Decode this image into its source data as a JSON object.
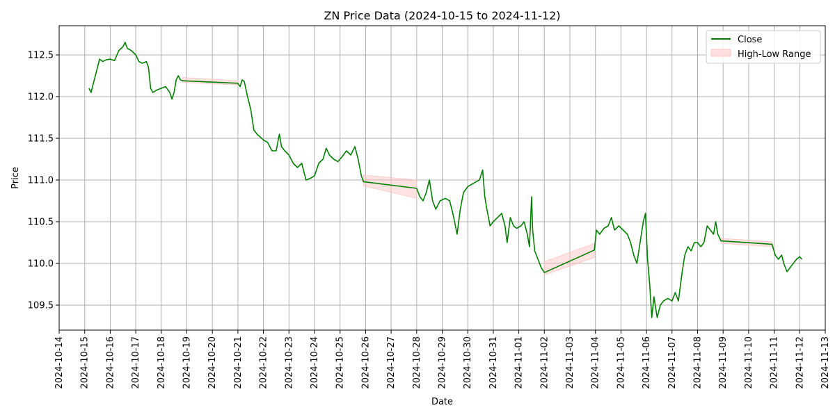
{
  "chart_data": {
    "type": "line",
    "title": "ZN Price Data (2024-10-15 to 2024-11-12)",
    "xlabel": "Date",
    "ylabel": "Price",
    "xlim": [
      "2024-10-14",
      "2024-11-13"
    ],
    "ylim": [
      109.2,
      112.85
    ],
    "x_ticks": [
      "2024-10-14",
      "2024-10-15",
      "2024-10-16",
      "2024-10-17",
      "2024-10-18",
      "2024-10-19",
      "2024-10-20",
      "2024-10-21",
      "2024-10-22",
      "2024-10-23",
      "2024-10-24",
      "2024-10-25",
      "2024-10-26",
      "2024-10-27",
      "2024-10-28",
      "2024-10-29",
      "2024-10-30",
      "2024-10-31",
      "2024-11-01",
      "2024-11-02",
      "2024-11-03",
      "2024-11-04",
      "2024-11-05",
      "2024-11-06",
      "2024-11-07",
      "2024-11-08",
      "2024-11-09",
      "2024-11-10",
      "2024-11-11",
      "2024-11-12",
      "2024-11-13"
    ],
    "y_ticks": [
      109.5,
      110.0,
      110.5,
      111.0,
      111.5,
      112.0,
      112.5
    ],
    "y_tick_labels": [
      "109.5",
      "110.0",
      "110.5",
      "111.0",
      "111.5",
      "112.0",
      "112.5"
    ],
    "grid": true,
    "legend_position": "top-right",
    "colors": {
      "close": "#008000",
      "range_fill": "#ffc0c0",
      "grid": "#b0b0b0"
    },
    "series": [
      {
        "name": "Close",
        "kind": "line",
        "points": [
          [
            "2024-10-15T04:00",
            112.1
          ],
          [
            "2024-10-15T06:00",
            112.05
          ],
          [
            "2024-10-15T08:00",
            112.15
          ],
          [
            "2024-10-15T10:00",
            112.25
          ],
          [
            "2024-10-15T12:00",
            112.35
          ],
          [
            "2024-10-15T14:00",
            112.45
          ],
          [
            "2024-10-15T17:00",
            112.42
          ],
          [
            "2024-10-15T20:00",
            112.44
          ],
          [
            "2024-10-16T00:00",
            112.45
          ],
          [
            "2024-10-16T04:00",
            112.43
          ],
          [
            "2024-10-16T08:00",
            112.55
          ],
          [
            "2024-10-16T12:00",
            112.6
          ],
          [
            "2024-10-16T14:00",
            112.65
          ],
          [
            "2024-10-16T16:00",
            112.58
          ],
          [
            "2024-10-16T20:00",
            112.55
          ],
          [
            "2024-10-17T00:00",
            112.5
          ],
          [
            "2024-10-17T03:00",
            112.42
          ],
          [
            "2024-10-17T06:00",
            112.4
          ],
          [
            "2024-10-17T10:00",
            112.42
          ],
          [
            "2024-10-17T12:00",
            112.35
          ],
          [
            "2024-10-17T14:00",
            112.1
          ],
          [
            "2024-10-17T16:00",
            112.05
          ],
          [
            "2024-10-17T20:00",
            112.08
          ],
          [
            "2024-10-18T00:00",
            112.1
          ],
          [
            "2024-10-18T04:00",
            112.12
          ],
          [
            "2024-10-18T08:00",
            112.05
          ],
          [
            "2024-10-18T10:00",
            111.97
          ],
          [
            "2024-10-18T12:00",
            112.05
          ],
          [
            "2024-10-18T14:00",
            112.2
          ],
          [
            "2024-10-18T16:00",
            112.25
          ],
          [
            "2024-10-18T18:00",
            112.2
          ],
          [
            "2024-10-18T20:00",
            112.19
          ],
          [
            "2024-10-21T00:00",
            112.16
          ],
          [
            "2024-10-21T02:00",
            112.12
          ],
          [
            "2024-10-21T04:00",
            112.2
          ],
          [
            "2024-10-21T06:00",
            112.18
          ],
          [
            "2024-10-21T09:00",
            112.0
          ],
          [
            "2024-10-21T12:00",
            111.85
          ],
          [
            "2024-10-21T15:00",
            111.6
          ],
          [
            "2024-10-21T18:00",
            111.55
          ],
          [
            "2024-10-22T00:00",
            111.48
          ],
          [
            "2024-10-22T04:00",
            111.45
          ],
          [
            "2024-10-22T08:00",
            111.35
          ],
          [
            "2024-10-22T12:00",
            111.35
          ],
          [
            "2024-10-22T15:00",
            111.55
          ],
          [
            "2024-10-22T17:00",
            111.4
          ],
          [
            "2024-10-22T20:00",
            111.35
          ],
          [
            "2024-10-23T00:00",
            111.3
          ],
          [
            "2024-10-23T04:00",
            111.2
          ],
          [
            "2024-10-23T08:00",
            111.15
          ],
          [
            "2024-10-23T12:00",
            111.2
          ],
          [
            "2024-10-23T16:00",
            111.0
          ],
          [
            "2024-10-23T20:00",
            111.02
          ],
          [
            "2024-10-24T00:00",
            111.05
          ],
          [
            "2024-10-24T04:00",
            111.2
          ],
          [
            "2024-10-24T08:00",
            111.25
          ],
          [
            "2024-10-24T11:00",
            111.38
          ],
          [
            "2024-10-24T14:00",
            111.3
          ],
          [
            "2024-10-24T18:00",
            111.25
          ],
          [
            "2024-10-24T22:00",
            111.22
          ],
          [
            "2024-10-25T02:00",
            111.28
          ],
          [
            "2024-10-25T06:00",
            111.35
          ],
          [
            "2024-10-25T10:00",
            111.3
          ],
          [
            "2024-10-25T14:00",
            111.4
          ],
          [
            "2024-10-25T17:00",
            111.25
          ],
          [
            "2024-10-25T20:00",
            111.05
          ],
          [
            "2024-10-25T22:00",
            110.98
          ],
          [
            "2024-10-28T00:00",
            110.9
          ],
          [
            "2024-10-28T03:00",
            110.8
          ],
          [
            "2024-10-28T06:00",
            110.75
          ],
          [
            "2024-10-28T09:00",
            110.85
          ],
          [
            "2024-10-28T12:00",
            111.0
          ],
          [
            "2024-10-28T15:00",
            110.75
          ],
          [
            "2024-10-28T18:00",
            110.65
          ],
          [
            "2024-10-28T22:00",
            110.75
          ],
          [
            "2024-10-29T03:00",
            110.78
          ],
          [
            "2024-10-29T07:00",
            110.75
          ],
          [
            "2024-10-29T10:00",
            110.6
          ],
          [
            "2024-10-29T14:00",
            110.35
          ],
          [
            "2024-10-29T17:00",
            110.65
          ],
          [
            "2024-10-29T20:00",
            110.85
          ],
          [
            "2024-10-30T00:00",
            110.92
          ],
          [
            "2024-10-30T04:00",
            110.95
          ],
          [
            "2024-10-30T08:00",
            110.98
          ],
          [
            "2024-10-30T11:00",
            111.0
          ],
          [
            "2024-10-30T14:00",
            111.12
          ],
          [
            "2024-10-30T16:00",
            110.8
          ],
          [
            "2024-10-30T18:00",
            110.65
          ],
          [
            "2024-10-30T21:00",
            110.45
          ],
          [
            "2024-10-31T00:00",
            110.5
          ],
          [
            "2024-10-31T04:00",
            110.55
          ],
          [
            "2024-10-31T08:00",
            110.6
          ],
          [
            "2024-10-31T11:00",
            110.45
          ],
          [
            "2024-10-31T13:00",
            110.25
          ],
          [
            "2024-10-31T16:00",
            110.55
          ],
          [
            "2024-10-31T19:00",
            110.45
          ],
          [
            "2024-10-31T22:00",
            110.42
          ],
          [
            "2024-11-01T02:00",
            110.45
          ],
          [
            "2024-11-01T05:00",
            110.5
          ],
          [
            "2024-11-01T08:00",
            110.35
          ],
          [
            "2024-11-01T10:00",
            110.2
          ],
          [
            "2024-11-01T12:00",
            110.8
          ],
          [
            "2024-11-01T13:00",
            110.4
          ],
          [
            "2024-11-01T15:00",
            110.15
          ],
          [
            "2024-11-01T18:00",
            110.05
          ],
          [
            "2024-11-01T21:00",
            109.95
          ],
          [
            "2024-11-02T00:00",
            109.89
          ],
          [
            "2024-11-03T23:00",
            110.16
          ],
          [
            "2024-11-04T01:00",
            110.4
          ],
          [
            "2024-11-04T04:00",
            110.35
          ],
          [
            "2024-11-04T08:00",
            110.42
          ],
          [
            "2024-11-04T12:00",
            110.45
          ],
          [
            "2024-11-04T15:00",
            110.55
          ],
          [
            "2024-11-04T18:00",
            110.4
          ],
          [
            "2024-11-04T22:00",
            110.45
          ],
          [
            "2024-11-05T02:00",
            110.4
          ],
          [
            "2024-11-05T06:00",
            110.35
          ],
          [
            "2024-11-05T09:00",
            110.25
          ],
          [
            "2024-11-05T12:00",
            110.1
          ],
          [
            "2024-11-05T15:00",
            110.0
          ],
          [
            "2024-11-05T18:00",
            110.25
          ],
          [
            "2024-11-05T21:00",
            110.5
          ],
          [
            "2024-11-05T23:00",
            110.6
          ],
          [
            "2024-11-06T01:00",
            110.05
          ],
          [
            "2024-11-06T03:00",
            109.75
          ],
          [
            "2024-11-06T05:00",
            109.35
          ],
          [
            "2024-11-06T07:00",
            109.6
          ],
          [
            "2024-11-06T10:00",
            109.35
          ],
          [
            "2024-11-06T13:00",
            109.5
          ],
          [
            "2024-11-06T16:00",
            109.55
          ],
          [
            "2024-11-06T20:00",
            109.58
          ],
          [
            "2024-11-07T00:00",
            109.55
          ],
          [
            "2024-11-07T03:00",
            109.65
          ],
          [
            "2024-11-07T06:00",
            109.55
          ],
          [
            "2024-11-07T09:00",
            109.85
          ],
          [
            "2024-11-07T12:00",
            110.1
          ],
          [
            "2024-11-07T15:00",
            110.2
          ],
          [
            "2024-11-07T18:00",
            110.15
          ],
          [
            "2024-11-07T21:00",
            110.25
          ],
          [
            "2024-11-08T00:00",
            110.25
          ],
          [
            "2024-11-08T03:00",
            110.2
          ],
          [
            "2024-11-08T06:00",
            110.25
          ],
          [
            "2024-11-08T09:00",
            110.45
          ],
          [
            "2024-11-08T12:00",
            110.4
          ],
          [
            "2024-11-08T15:00",
            110.35
          ],
          [
            "2024-11-08T17:00",
            110.5
          ],
          [
            "2024-11-08T19:00",
            110.35
          ],
          [
            "2024-11-08T22:00",
            110.27
          ],
          [
            "2024-11-10T22:00",
            110.23
          ],
          [
            "2024-11-11T01:00",
            110.1
          ],
          [
            "2024-11-11T04:00",
            110.05
          ],
          [
            "2024-11-11T07:00",
            110.1
          ],
          [
            "2024-11-11T09:00",
            110.0
          ],
          [
            "2024-11-11T12:00",
            109.9
          ],
          [
            "2024-11-11T15:00",
            109.95
          ],
          [
            "2024-11-11T18:00",
            110.0
          ],
          [
            "2024-11-11T21:00",
            110.05
          ],
          [
            "2024-11-12T00:00",
            110.08
          ],
          [
            "2024-11-12T02:00",
            110.05
          ]
        ]
      },
      {
        "name": "High-Low Range",
        "kind": "band",
        "points": [
          [
            "2024-10-18T20:00",
            112.17,
            112.23
          ],
          [
            "2024-10-21T00:00",
            112.14,
            112.19
          ],
          [
            "2024-10-25T22:00",
            110.93,
            111.06
          ],
          [
            "2024-10-28T00:00",
            110.78,
            111.0
          ],
          [
            "2024-11-02T00:00",
            109.86,
            110.02
          ],
          [
            "2024-11-03T23:00",
            110.07,
            110.24
          ],
          [
            "2024-11-08T22:00",
            110.24,
            110.3
          ],
          [
            "2024-11-10T22:00",
            110.2,
            110.26
          ]
        ]
      }
    ]
  }
}
